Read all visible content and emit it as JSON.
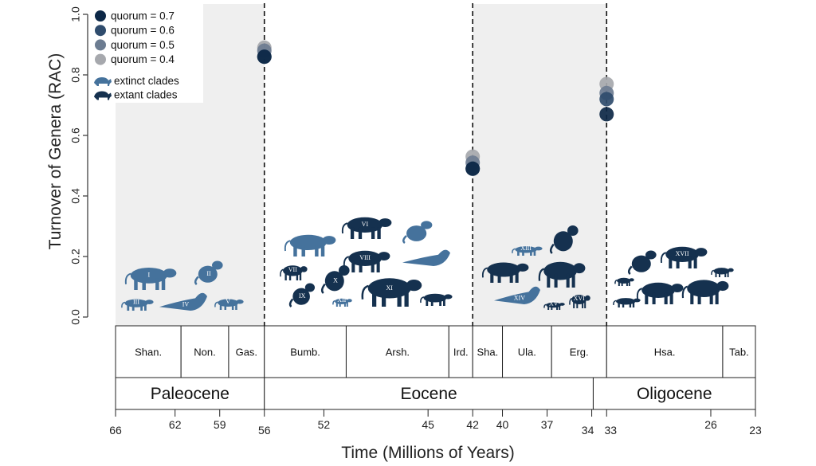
{
  "chart_data": {
    "type": "scatter",
    "xlabel": "Time (Millions of Years)",
    "ylabel": "Turnover of Genera (RAC)",
    "xlim": [
      66,
      23
    ],
    "ylim": [
      0,
      1
    ],
    "x_ticks": [
      66,
      62,
      59,
      56,
      52,
      45,
      42,
      40,
      37,
      34,
      33,
      26,
      23
    ],
    "y_ticks": [
      "0.0",
      "0.2",
      "0.4",
      "0.6",
      "0.8",
      "1.0"
    ],
    "boundaries": [
      56,
      42,
      33
    ],
    "shaded_intervals": [
      [
        66,
        56
      ],
      [
        42,
        33
      ]
    ],
    "series": [
      {
        "name": "quorum = 0.7",
        "color": "#0d2847",
        "x": [
          56,
          42,
          33
        ],
        "y": [
          0.86,
          0.49,
          0.67
        ]
      },
      {
        "name": "quorum = 0.6",
        "color": "#2f4c6d",
        "x": [
          56,
          42,
          33
        ],
        "y": [
          0.86,
          0.49,
          0.72
        ]
      },
      {
        "name": "quorum = 0.5",
        "color": "#6c7c91",
        "x": [
          56,
          42,
          33
        ],
        "y": [
          0.88,
          0.51,
          0.74
        ]
      },
      {
        "name": "quorum = 0.4",
        "color": "#a6a8ad",
        "x": [
          56,
          42,
          33
        ],
        "y": [
          0.89,
          0.53,
          0.77
        ]
      }
    ],
    "legend_position": "top-left",
    "clade_legend": [
      {
        "label": "extinct clades",
        "color": "#45729c"
      },
      {
        "label": "extant clades",
        "color": "#15314f"
      }
    ],
    "stages": [
      {
        "label": "Shan.",
        "start": 66,
        "end": 61.6
      },
      {
        "label": "Non.",
        "start": 61.6,
        "end": 58.4
      },
      {
        "label": "Gas.",
        "start": 58.4,
        "end": 56
      },
      {
        "label": "Bumb.",
        "start": 56,
        "end": 50.5
      },
      {
        "label": "Arsh.",
        "start": 50.5,
        "end": 43.6
      },
      {
        "label": "Ird.",
        "start": 43.6,
        "end": 42
      },
      {
        "label": "Sha.",
        "start": 42,
        "end": 40
      },
      {
        "label": "Ula.",
        "start": 40,
        "end": 36.7
      },
      {
        "label": "Erg.",
        "start": 36.7,
        "end": 33
      },
      {
        "label": "Hsa.",
        "start": 33,
        "end": 25.2
      },
      {
        "label": "Tab.",
        "start": 25.2,
        "end": 23
      }
    ],
    "epochs": [
      {
        "label": "Paleocene",
        "start": 66,
        "end": 56
      },
      {
        "label": "Eocene",
        "start": 56,
        "end": 33.9
      },
      {
        "label": "Oligocene",
        "start": 33.9,
        "end": 23
      }
    ],
    "clade_numerals": [
      "I",
      "II",
      "III",
      "IV",
      "V",
      "VI",
      "VII",
      "VIII",
      "IX",
      "X",
      "XI",
      "XII",
      "XIII",
      "XIV",
      "XV",
      "XVI",
      "XVII"
    ]
  }
}
